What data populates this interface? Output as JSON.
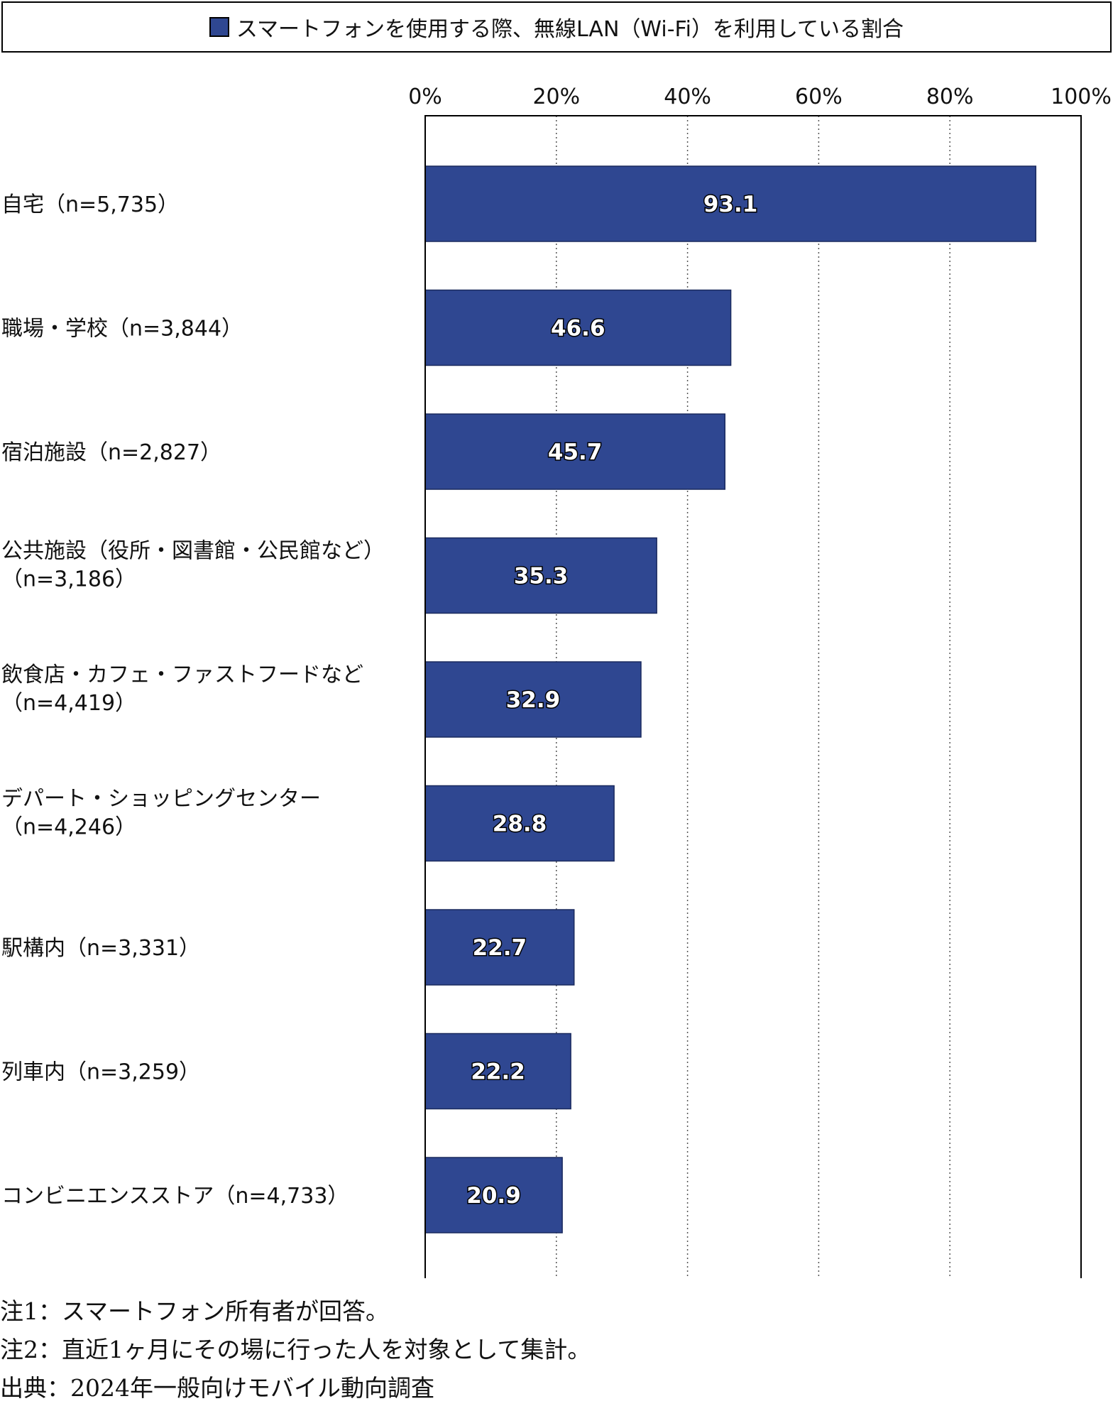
{
  "legend": {
    "label": "スマートフォンを使用する際、無線LAN（Wi-Fi）を利用している割合"
  },
  "colors": {
    "bar": "#2f4791",
    "bar_stroke": "#1a2a5e"
  },
  "chart_data": {
    "type": "bar",
    "orientation": "horizontal",
    "xlim": [
      0,
      100
    ],
    "x_ticks": [
      "0%",
      "20%",
      "40%",
      "60%",
      "80%",
      "100%"
    ],
    "tick_values": [
      0,
      20,
      40,
      60,
      80,
      100
    ],
    "grid": "vertical dotted",
    "legend_position": "top",
    "categories": [
      {
        "lines": [
          "自宅（n=5,735）"
        ]
      },
      {
        "lines": [
          "職場・学校（n=3,844）"
        ]
      },
      {
        "lines": [
          "宿泊施設（n=2,827）"
        ]
      },
      {
        "lines": [
          "公共施設（役所・図書館・公民館など）",
          "（n=3,186）"
        ]
      },
      {
        "lines": [
          "飲食店・カフェ・ファストフードなど",
          "（n=4,419）"
        ]
      },
      {
        "lines": [
          "デパート・ショッピングセンター",
          "（n=4,246）"
        ]
      },
      {
        "lines": [
          "駅構内（n=3,331）"
        ]
      },
      {
        "lines": [
          "列車内（n=3,259）"
        ]
      },
      {
        "lines": [
          "コンビニエンスストア（n=4,733）"
        ]
      }
    ],
    "values": [
      93.1,
      46.6,
      45.7,
      35.3,
      32.9,
      28.8,
      22.7,
      22.2,
      20.9
    ],
    "value_labels": [
      "93.1",
      "46.6",
      "45.7",
      "35.3",
      "32.9",
      "28.8",
      "22.7",
      "22.2",
      "20.9"
    ]
  },
  "notes": [
    "注1：スマートフォン所有者が回答。",
    "注2：直近1ヶ月にその場に行った人を対象として集計。",
    "出典：2024年一般向けモバイル動向調査"
  ]
}
